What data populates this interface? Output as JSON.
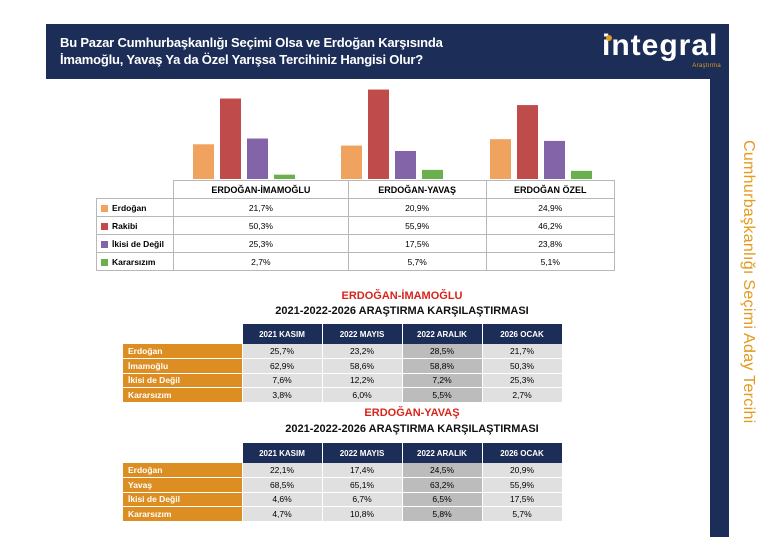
{
  "header": {
    "title_line1": "Bu Pazar Cumhurbaşkanlığı Seçimi Olsa ve Erdoğan Karşısında",
    "title_line2": "İmamoğlu, Yavaş Ya da Özel Yarışsa Tercihiniz Hangisi Olur?",
    "logo_text": "integral",
    "logo_sub": "Araştırma"
  },
  "side_text": "Cumhurbaşkanlığı Seçimi Aday Tercihi",
  "colors": {
    "navy": "#1c2d57",
    "orange": "#dc8e22",
    "red": "#d7261b",
    "series": [
      "#f0a35e",
      "#bf4b4b",
      "#8364a8",
      "#6ab04c"
    ]
  },
  "chart_data": [
    {
      "type": "bar",
      "title": "",
      "categories": [
        "ERDOĞAN-İMAMOĞLU",
        "ERDOĞAN-YAVAŞ",
        "ERDOĞAN ÖZEL"
      ],
      "series": [
        {
          "name": "Erdoğan",
          "values": [
            21.7,
            20.9,
            24.9
          ],
          "labels": [
            "21,7%",
            "20,9%",
            "24,9%"
          ]
        },
        {
          "name": "Rakibi",
          "values": [
            50.3,
            55.9,
            46.2
          ],
          "labels": [
            "50,3%",
            "55,9%",
            "46,2%"
          ]
        },
        {
          "name": "İkisi de Değil",
          "values": [
            25.3,
            17.5,
            23.8
          ],
          "labels": [
            "25,3%",
            "17,5%",
            "23,8%"
          ]
        },
        {
          "name": "Kararsızım",
          "values": [
            2.7,
            5.7,
            5.1
          ],
          "labels": [
            "2,7%",
            "5,7%",
            "5,1%"
          ]
        }
      ],
      "ylim": [
        0,
        60
      ]
    },
    {
      "type": "table",
      "title": "ERDOĞAN-İMAMOĞLU",
      "subtitle": "2021-2022-2026 ARAŞTIRMA KARŞILAŞTIRMASI",
      "columns": [
        "2021 KASIM",
        "2022 MAYIS",
        "2022 ARALIK",
        "2026 OCAK"
      ],
      "rows": [
        {
          "label": "Erdoğan",
          "values": [
            "25,7%",
            "23,2%",
            "28,5%",
            "21,7%"
          ]
        },
        {
          "label": "İmamoğlu",
          "values": [
            "62,9%",
            "58,6%",
            "58,8%",
            "50,3%"
          ]
        },
        {
          "label": "İkisi de Değil",
          "values": [
            "7,6%",
            "12,2%",
            "7,2%",
            "25,3%"
          ]
        },
        {
          "label": "Kararsızım",
          "values": [
            "3,8%",
            "6,0%",
            "5,5%",
            "2,7%"
          ]
        }
      ]
    },
    {
      "type": "table",
      "title": "ERDOĞAN-YAVAŞ",
      "subtitle": "2021-2022-2026 ARAŞTIRMA KARŞILAŞTIRMASI",
      "columns": [
        "2021 KASIM",
        "2022 MAYIS",
        "2022 ARALIK",
        "2026 OCAK"
      ],
      "rows": [
        {
          "label": "Erdoğan",
          "values": [
            "22,1%",
            "17,4%",
            "24,5%",
            "20,9%"
          ]
        },
        {
          "label": "Yavaş",
          "values": [
            "68,5%",
            "65,1%",
            "63,2%",
            "55,9%"
          ]
        },
        {
          "label": "İkisi de Değil",
          "values": [
            "4,6%",
            "6,7%",
            "6,5%",
            "17,5%"
          ]
        },
        {
          "label": "Kararsızım",
          "values": [
            "4,7%",
            "10,8%",
            "5,8%",
            "5,7%"
          ]
        }
      ]
    }
  ]
}
